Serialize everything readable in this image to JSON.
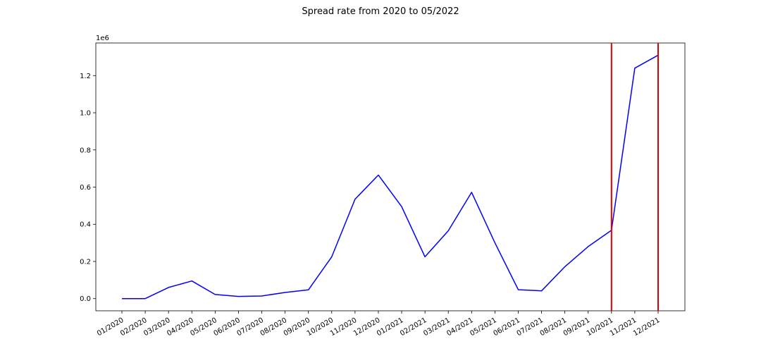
{
  "chart_data": {
    "type": "line",
    "title": "Spread rate from 2020 to 05/2022",
    "xlabel": "",
    "ylabel": "",
    "y_scale_label": "1e6",
    "x": [
      "01/2020",
      "02/2020",
      "03/2020",
      "04/2020",
      "05/2020",
      "06/2020",
      "07/2020",
      "08/2020",
      "09/2020",
      "10/2020",
      "11/2020",
      "12/2020",
      "01/2021",
      "02/2021",
      "03/2021",
      "04/2021",
      "05/2021",
      "06/2021",
      "07/2021",
      "08/2021",
      "09/2021",
      "10/2021",
      "11/2021",
      "12/2021"
    ],
    "series": [
      {
        "color": "#0000ff",
        "values": [
          0,
          0,
          60000,
          95000,
          22000,
          12000,
          14000,
          33000,
          47000,
          225000,
          535000,
          665000,
          495000,
          225000,
          365000,
          572000,
          300000,
          48000,
          42000,
          172000,
          280000,
          368000,
          1240000,
          1310000
        ]
      }
    ],
    "vertical_lines": [
      {
        "x": "10/2021",
        "color": "#e00000"
      },
      {
        "x": "12/2021",
        "color": "#e00000"
      }
    ],
    "yticks": [
      0,
      200000,
      400000,
      600000,
      800000,
      1000000,
      1200000
    ],
    "ytick_labels": [
      "0.0",
      "0.2",
      "0.4",
      "0.6",
      "0.8",
      "1.0",
      "1.2"
    ],
    "ylim": [
      -65500,
      1375500
    ],
    "grid": false,
    "legend": "none"
  }
}
